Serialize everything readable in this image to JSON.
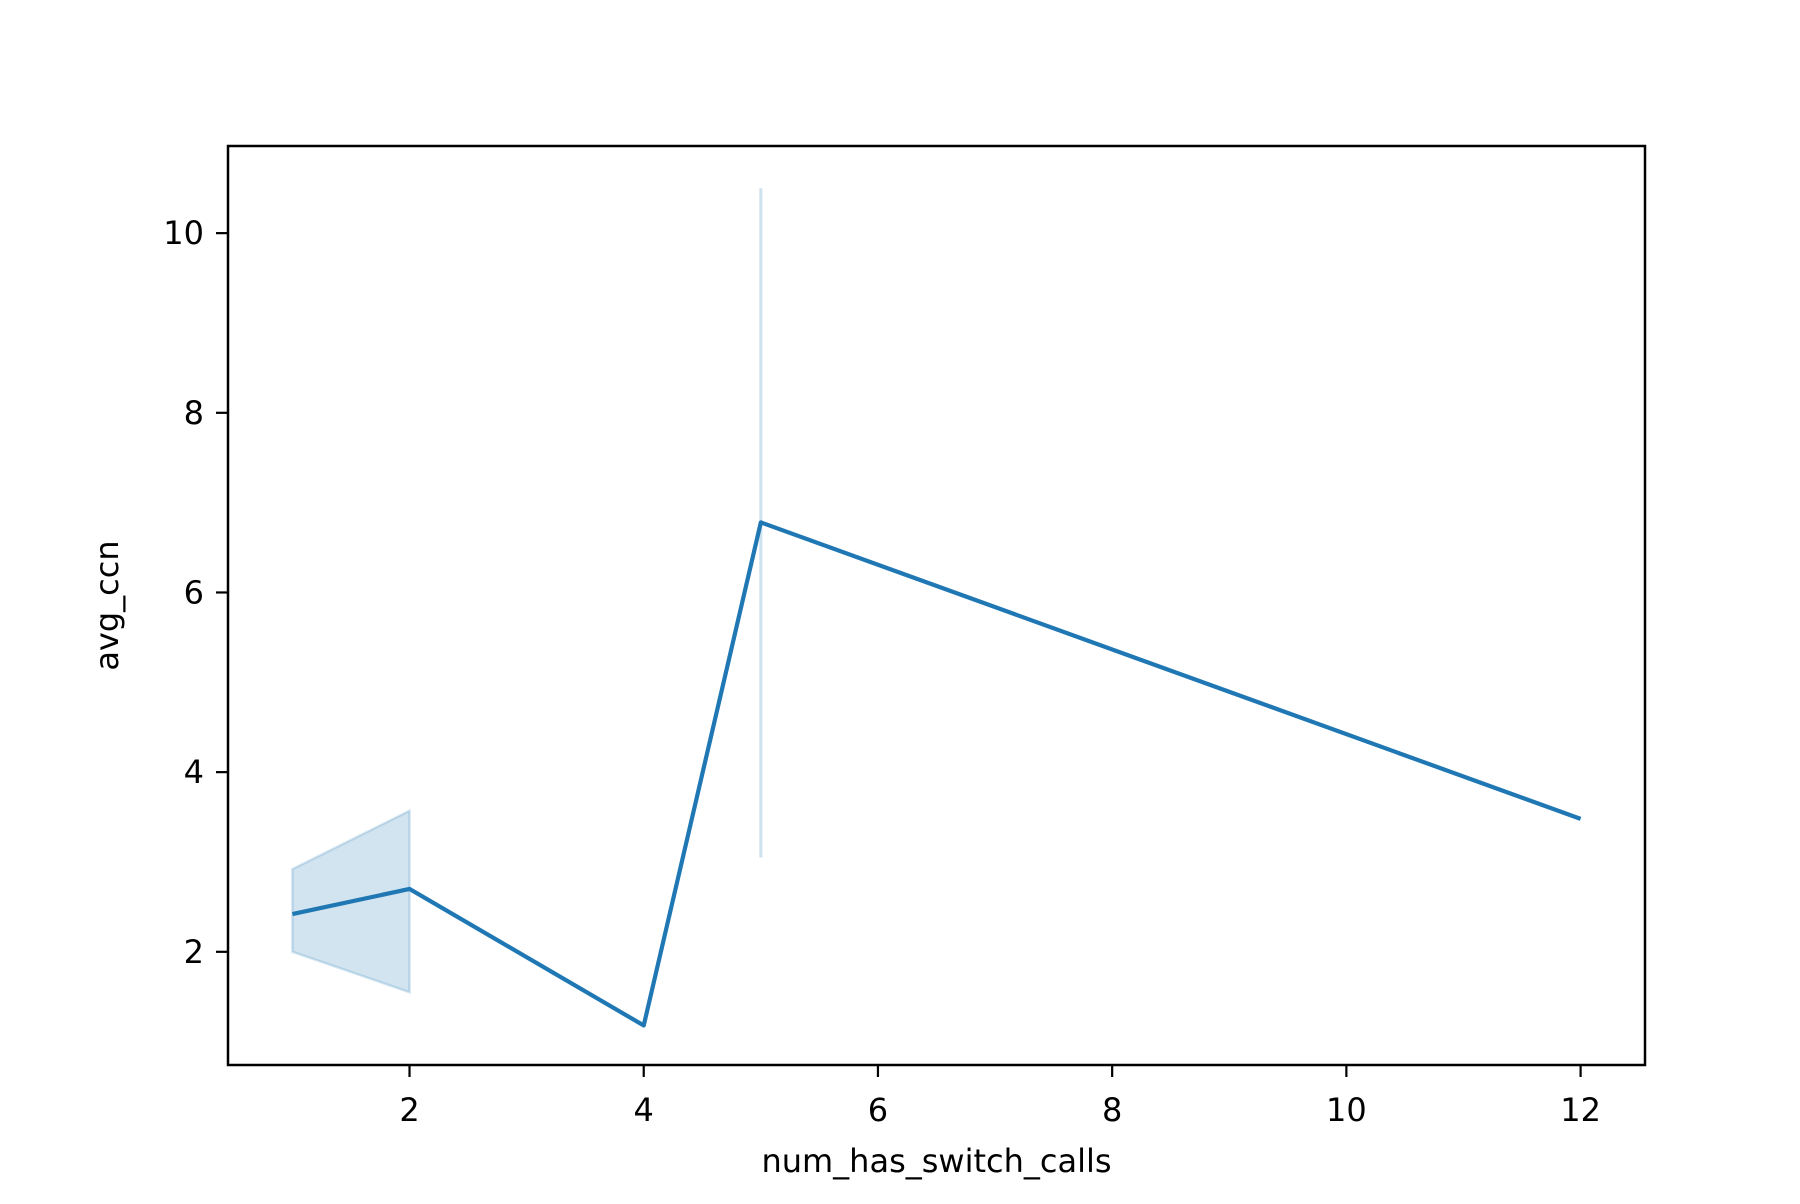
{
  "chart_data": {
    "type": "line",
    "title": "",
    "xlabel": "num_has_switch_calls",
    "ylabel": "avg_ccn",
    "xlim": [
      0.45,
      12.55
    ],
    "ylim": [
      0.74,
      10.97
    ],
    "x_ticks": [
      2,
      4,
      6,
      8,
      10,
      12
    ],
    "y_ticks": [
      2,
      4,
      6,
      8,
      10
    ],
    "x_tick_labels": [
      "2",
      "4",
      "6",
      "8",
      "10",
      "12"
    ],
    "y_tick_labels": [
      "2",
      "4",
      "6",
      "8",
      "10"
    ],
    "grid": false,
    "series": [
      {
        "color": "#1f77b4",
        "points": [
          {
            "x": 1,
            "y": 2.42
          },
          {
            "x": 2,
            "y": 2.7
          },
          {
            "x": 4,
            "y": 1.18
          },
          {
            "x": 5,
            "y": 6.78
          },
          {
            "x": 12,
            "y": 3.48
          }
        ],
        "confidence_band": [
          {
            "x": 1,
            "low": 2.0,
            "high": 2.92
          },
          {
            "x": 2,
            "low": 1.55,
            "high": 3.57
          }
        ],
        "error_bars": [
          {
            "x": 5,
            "low": 3.05,
            "high": 10.5
          }
        ]
      }
    ]
  }
}
